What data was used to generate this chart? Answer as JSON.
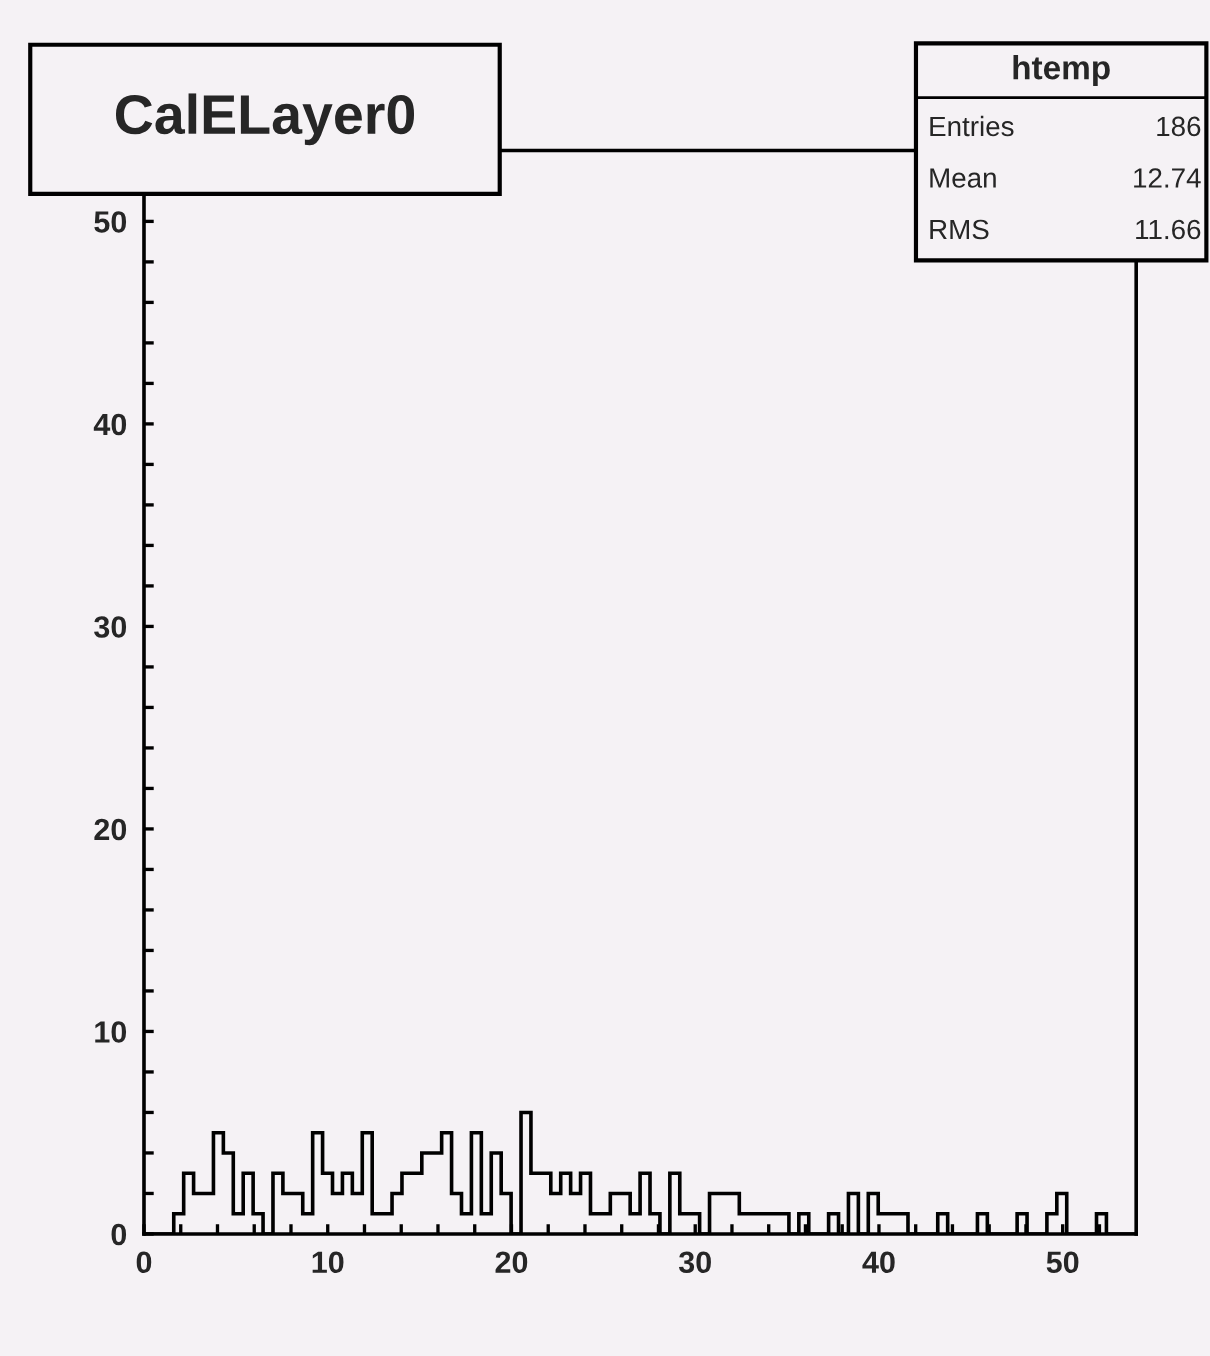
{
  "chart_data": {
    "type": "histogram",
    "title": "CalELayer0",
    "bins": [
      0,
      0.54,
      1.08,
      1.62,
      2.16,
      2.7,
      3.24,
      3.78,
      4.32,
      4.86,
      5.4,
      5.94,
      6.48,
      7.02,
      7.56,
      8.1,
      8.64,
      9.18,
      9.72,
      10.26,
      10.8,
      11.34,
      11.88,
      12.42,
      12.96,
      13.5,
      14.04,
      14.58,
      15.12,
      15.66,
      16.2,
      16.74,
      17.28,
      17.82,
      18.36,
      18.9,
      19.44,
      19.98,
      20.52,
      21.06,
      21.6,
      22.14,
      22.68,
      23.22,
      23.76,
      24.3,
      24.84,
      25.38,
      25.92,
      26.46,
      27,
      27.54,
      28.08,
      28.62,
      29.16,
      29.7,
      30.24,
      30.78,
      31.32,
      31.86,
      32.4,
      32.94,
      33.48,
      34.02,
      34.56,
      35.1,
      35.64,
      36.18,
      36.72,
      37.26,
      37.8,
      38.34,
      38.88,
      39.42,
      39.96,
      40.5,
      41.04,
      41.58,
      42.12,
      42.66,
      43.2,
      43.74,
      44.28,
      44.82,
      45.36,
      45.9,
      46.44,
      46.98,
      47.52,
      48.06,
      48.6,
      49.14,
      49.68,
      50.22,
      50.76,
      51.3,
      51.84,
      52.38,
      52.92,
      53.46,
      54
    ],
    "values": [
      0,
      0,
      0,
      1,
      3,
      2,
      2,
      5,
      4,
      1,
      3,
      1,
      0,
      3,
      2,
      2,
      1,
      5,
      3,
      2,
      3,
      2,
      5,
      1,
      1,
      2,
      3,
      3,
      4,
      4,
      5,
      2,
      1,
      5,
      1,
      4,
      2,
      0,
      6,
      3,
      3,
      2,
      3,
      2,
      3,
      1,
      1,
      2,
      2,
      1,
      3,
      1,
      0,
      3,
      1,
      1,
      0,
      2,
      2,
      2,
      1,
      1,
      1,
      1,
      1,
      0,
      1,
      0,
      0,
      1,
      0,
      2,
      0,
      2,
      1,
      1,
      1,
      0,
      0,
      0,
      1,
      0,
      0,
      0,
      1,
      0,
      0,
      0,
      1,
      0,
      0,
      1,
      2,
      0,
      0,
      0,
      1,
      0,
      0,
      0
    ],
    "color": "#000000",
    "xlim": [
      0,
      54
    ],
    "ylim": [
      0,
      53.5
    ],
    "xticks": [
      0,
      {
        "value": 2,
        "label": null
      },
      {
        "value": 4,
        "label": null
      },
      {
        "value": 6,
        "label": null
      },
      {
        "value": 8,
        "label": null
      },
      10,
      {
        "value": 12,
        "label": null
      },
      {
        "value": 14,
        "label": null
      },
      {
        "value": 16,
        "label": null
      },
      {
        "value": 18,
        "label": null
      },
      20,
      {
        "value": 22,
        "label": null
      },
      {
        "value": 24,
        "label": null
      },
      {
        "value": 26,
        "label": null
      },
      {
        "value": 28,
        "label": null
      },
      30,
      {
        "value": 32,
        "label": null
      },
      {
        "value": 34,
        "label": null
      },
      {
        "value": 36,
        "label": null
      },
      {
        "value": 38,
        "label": null
      },
      40,
      {
        "value": 42,
        "label": null
      },
      {
        "value": 44,
        "label": null
      },
      {
        "value": 46,
        "label": null
      },
      {
        "value": 48,
        "label": null
      },
      50,
      {
        "value": 52,
        "label": null
      }
    ],
    "yticks": [
      0,
      {
        "value": 2,
        "label": null
      },
      {
        "value": 4,
        "label": null
      },
      {
        "value": 6,
        "label": null
      },
      {
        "value": 8,
        "label": null
      },
      10,
      {
        "value": 12,
        "label": null
      },
      {
        "value": 14,
        "label": null
      },
      {
        "value": 16,
        "label": null
      },
      {
        "value": 18,
        "label": null
      },
      20,
      {
        "value": 22,
        "label": null
      },
      {
        "value": 24,
        "label": null
      },
      {
        "value": 26,
        "label": null
      },
      {
        "value": 28,
        "label": null
      },
      30,
      {
        "value": 32,
        "label": null
      },
      {
        "value": 34,
        "label": null
      },
      {
        "value": 36,
        "label": null
      },
      {
        "value": 38,
        "label": null
      },
      40,
      {
        "value": 42,
        "label": null
      },
      {
        "value": 44,
        "label": null
      },
      {
        "value": 46,
        "label": null
      },
      {
        "value": 48,
        "label": null
      },
      50,
      {
        "value": 52,
        "label": null
      }
    ],
    "grid": false,
    "annotations": [
      "htemp",
      "Entries",
      "186",
      "Mean",
      "12.74",
      "RMS",
      "11.66"
    ]
  }
}
